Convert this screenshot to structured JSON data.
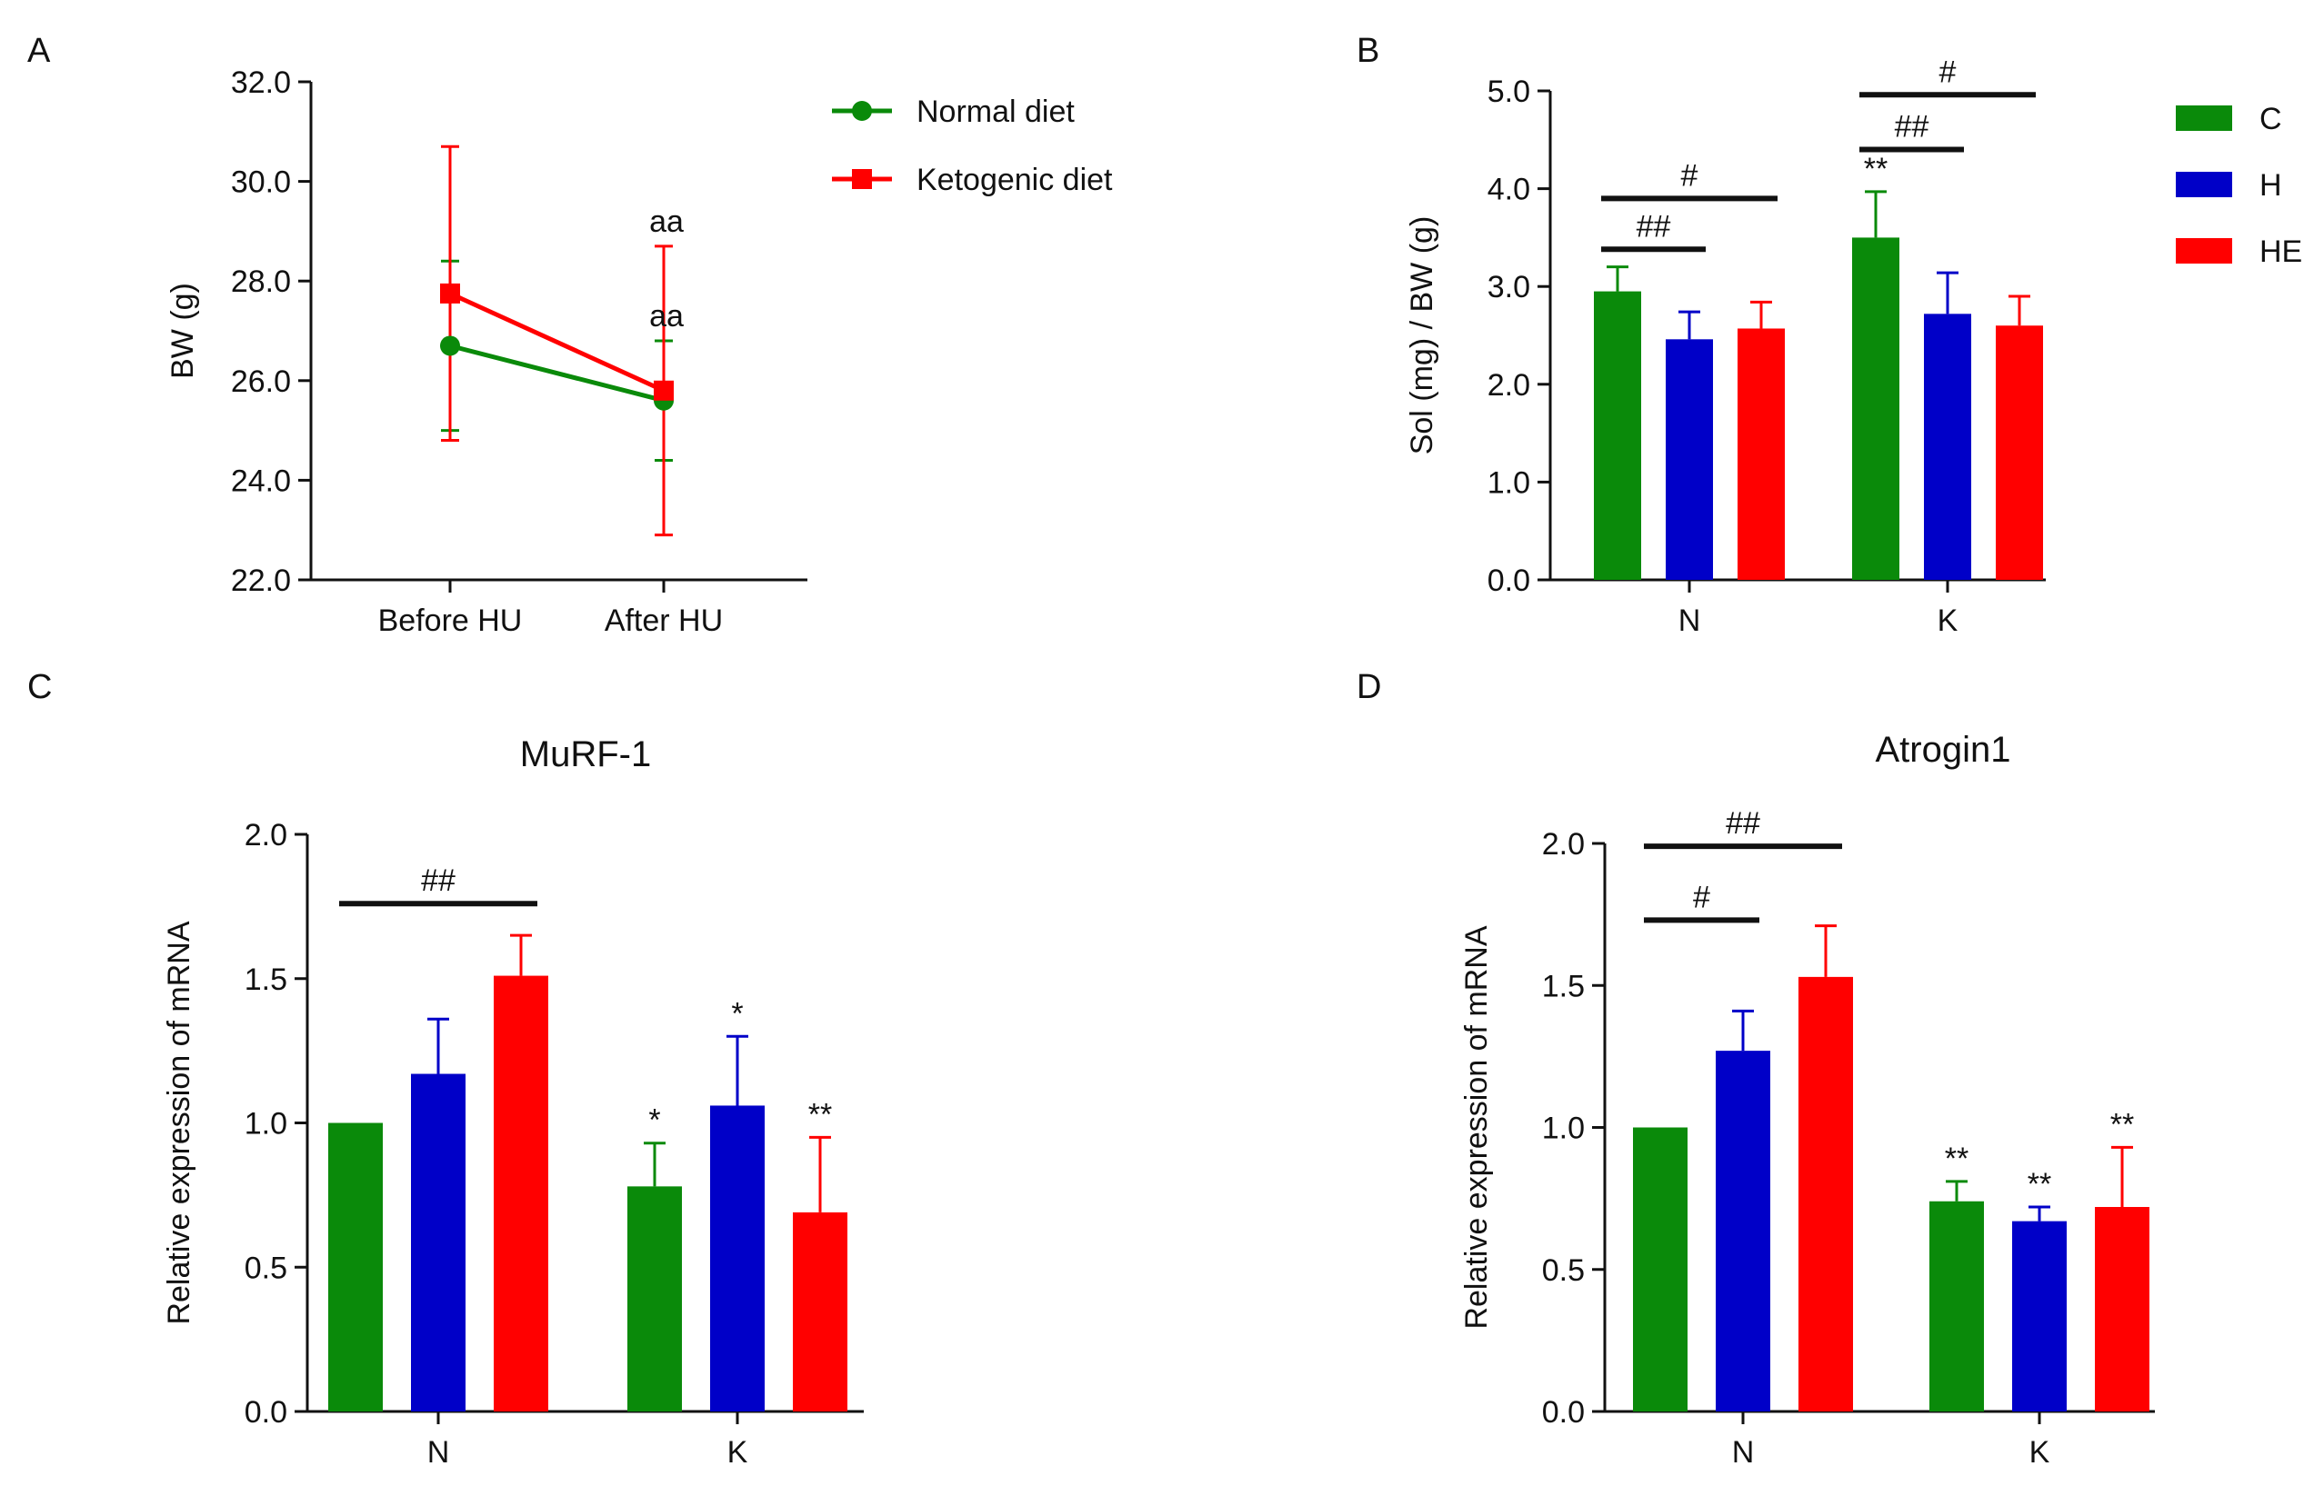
{
  "chart_data": [
    {
      "panel": "A",
      "type": "line",
      "title": "",
      "xlabel": "",
      "ylabel": "BW (g)",
      "ylim": [
        22.0,
        32.0
      ],
      "yticks": [
        "22.0",
        "24.0",
        "26.0",
        "28.0",
        "30.0",
        "32.0"
      ],
      "categories": [
        "Before HU",
        "After HU"
      ],
      "legend_position": "top-right",
      "series": [
        {
          "name": "Normal diet",
          "color": "#0a8a0a",
          "marker": "circle",
          "values": [
            26.7,
            25.6
          ],
          "errors": [
            1.7,
            1.2
          ]
        },
        {
          "name": "Ketogenic diet",
          "color": "#ff0000",
          "marker": "square",
          "values": [
            27.75,
            25.8
          ],
          "errors": [
            2.95,
            2.9
          ]
        }
      ],
      "annotations": [
        {
          "text": "aa",
          "series": "Ketogenic diet",
          "category": "After HU",
          "y": 28.7
        },
        {
          "text": "aa",
          "series": "Normal diet",
          "category": "After HU",
          "y": 26.8
        }
      ]
    },
    {
      "panel": "B",
      "type": "bar",
      "title": "",
      "xlabel": "",
      "ylabel": "Sol (mg) / BW (g)",
      "ylim": [
        0.0,
        5.0
      ],
      "yticks": [
        "0.0",
        "1.0",
        "2.0",
        "3.0",
        "4.0",
        "5.0"
      ],
      "categories": [
        "N",
        "K"
      ],
      "legend_position": "top-right",
      "series": [
        {
          "name": "C",
          "color": "#0a8a0a",
          "values": [
            2.95,
            3.5
          ],
          "errors": [
            0.25,
            0.47
          ],
          "stars": [
            "",
            "**"
          ]
        },
        {
          "name": "H",
          "color": "#0000c8",
          "values": [
            2.46,
            2.72
          ],
          "errors": [
            0.28,
            0.42
          ],
          "stars": [
            "",
            ""
          ]
        },
        {
          "name": "HE",
          "color": "#ff0000",
          "values": [
            2.57,
            2.6
          ],
          "errors": [
            0.27,
            0.3
          ],
          "stars": [
            "",
            ""
          ]
        }
      ],
      "brackets": [
        {
          "label": "##",
          "category": "N",
          "from": "C",
          "to": "H",
          "y": 3.38
        },
        {
          "label": "#",
          "category": "N",
          "from": "C",
          "to": "HE",
          "y": 3.9
        },
        {
          "label": "##",
          "category": "K",
          "from": "C",
          "to": "H",
          "y": 4.4
        },
        {
          "label": "#",
          "category": "K",
          "from": "C",
          "to": "HE",
          "y": 4.96
        }
      ]
    },
    {
      "panel": "C",
      "type": "bar",
      "title": "MuRF-1",
      "xlabel": "",
      "ylabel": "Relative expression of mRNA",
      "ylim": [
        0.0,
        2.0
      ],
      "yticks": [
        "0.0",
        "0.5",
        "1.0",
        "1.5",
        "2.0"
      ],
      "categories": [
        "N",
        "K"
      ],
      "series": [
        {
          "name": "C",
          "color": "#0a8a0a",
          "values": [
            1.0,
            0.78
          ],
          "errors": [
            0,
            0.15
          ],
          "stars": [
            "",
            "*"
          ]
        },
        {
          "name": "H",
          "color": "#0000c8",
          "values": [
            1.17,
            1.06
          ],
          "errors": [
            0.19,
            0.24
          ],
          "stars": [
            "",
            "*"
          ]
        },
        {
          "name": "HE",
          "color": "#ff0000",
          "values": [
            1.51,
            0.69
          ],
          "errors": [
            0.14,
            0.26
          ],
          "stars": [
            "",
            "**"
          ]
        }
      ],
      "brackets": [
        {
          "label": "##",
          "category": "N",
          "from": "C",
          "to": "HE",
          "y": 1.76
        }
      ]
    },
    {
      "panel": "D",
      "type": "bar",
      "title": "Atrogin1",
      "xlabel": "",
      "ylabel": "Relative expression of mRNA",
      "ylim": [
        0.0,
        2.0
      ],
      "yticks": [
        "0.0",
        "0.5",
        "1.0",
        "1.5",
        "2.0"
      ],
      "categories": [
        "N",
        "K"
      ],
      "series": [
        {
          "name": "C",
          "color": "#0a8a0a",
          "values": [
            1.0,
            0.74
          ],
          "errors": [
            0,
            0.07
          ],
          "stars": [
            "",
            "**"
          ]
        },
        {
          "name": "H",
          "color": "#0000c8",
          "values": [
            1.27,
            0.67
          ],
          "errors": [
            0.14,
            0.05
          ],
          "stars": [
            "",
            "**"
          ]
        },
        {
          "name": "HE",
          "color": "#ff0000",
          "values": [
            1.53,
            0.72
          ],
          "errors": [
            0.18,
            0.21
          ],
          "stars": [
            "",
            "**"
          ]
        }
      ],
      "brackets": [
        {
          "label": "#",
          "category": "N",
          "from": "C",
          "to": "H",
          "y": 1.73
        },
        {
          "label": "##",
          "category": "N",
          "from": "C",
          "to": "HE",
          "y": 1.99
        }
      ]
    }
  ]
}
